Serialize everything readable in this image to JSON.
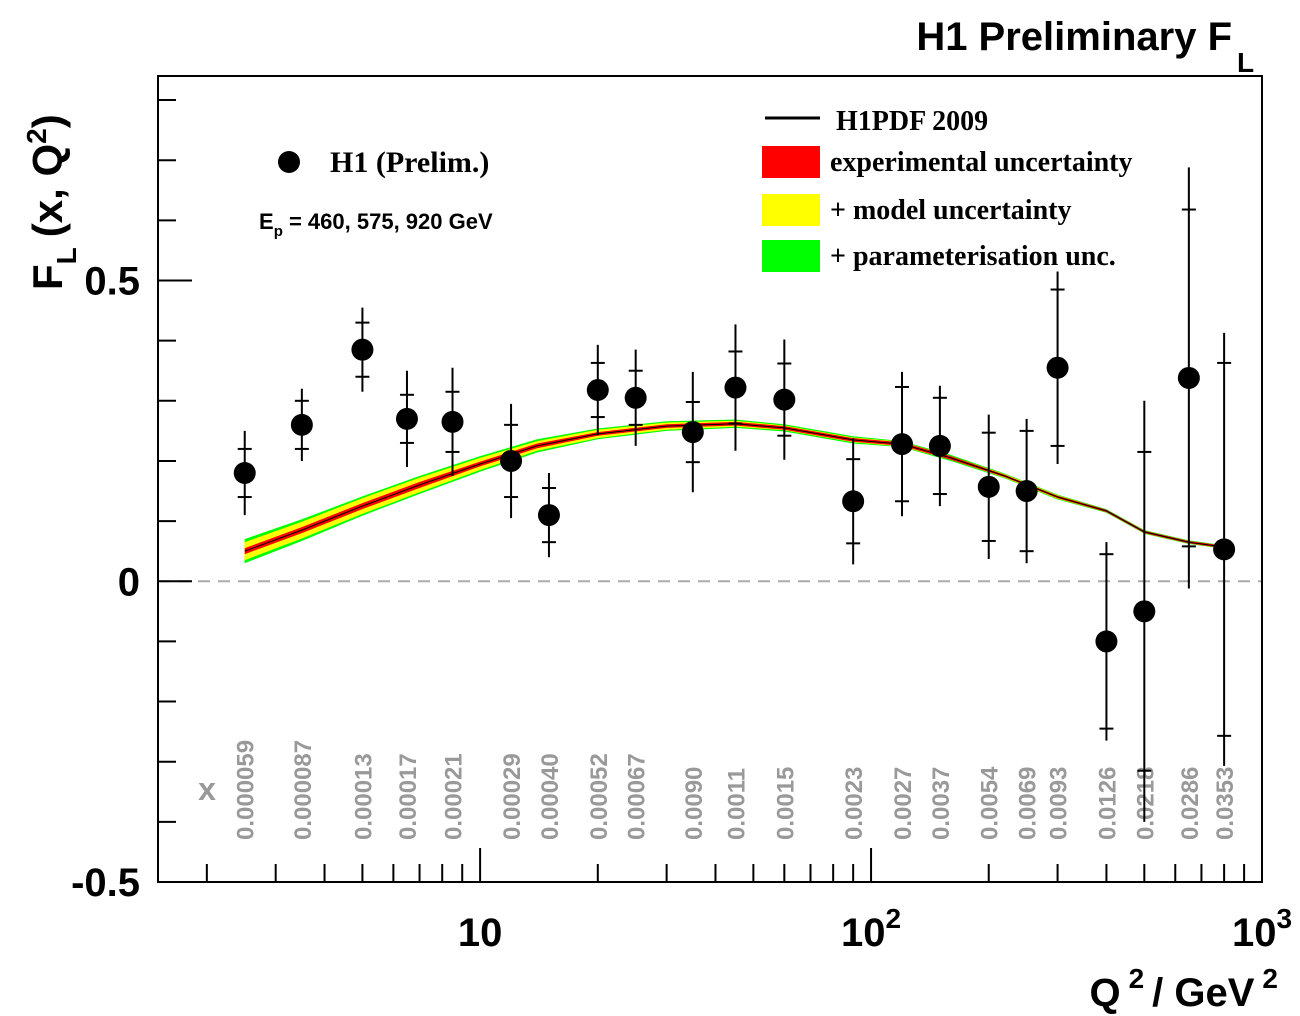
{
  "chart_data": {
    "type": "scatter",
    "title": "H1 Preliminary F",
    "title_sub": "L",
    "ylabel": {
      "main": "F",
      "main_sub": "L",
      "paren": "(x, Q",
      "paren_sup": "2",
      "close": ")"
    },
    "xlabel": {
      "q": "Q",
      "q_sup": "2",
      "unit": "/ GeV",
      "unit_sup": "2"
    },
    "x_scale": "log",
    "xlim": [
      1.5,
      1000
    ],
    "ylim": [
      -0.5,
      0.84
    ],
    "x_ticks": [
      {
        "base": "10",
        "exp": "",
        "value": 10
      },
      {
        "base": "10",
        "exp": "2",
        "value": 100
      },
      {
        "base": "10",
        "exp": "3",
        "value": 1000
      }
    ],
    "y_ticks": [
      {
        "label": "0.5",
        "value": 0.5
      },
      {
        "label": "0",
        "value": 0
      },
      {
        "label": "-0.5",
        "value": -0.5
      }
    ],
    "zero_line": true,
    "legend_left": {
      "marker": "filled-circle",
      "label": "H1 (Prelim.)",
      "energy_prefix": "E",
      "energy_sub": "p",
      "energy_text": " = 460, 575, 920 GeV"
    },
    "legend_right": [
      {
        "kind": "line",
        "label": "H1PDF 2009",
        "color": "#000000"
      },
      {
        "kind": "box",
        "label": "experimental uncertainty",
        "color": "#ff0000"
      },
      {
        "kind": "box",
        "label": "+ model uncertainty",
        "color": "#ffff00"
      },
      {
        "kind": "box",
        "label": "+ parameterisation unc.",
        "color": "#00ff00"
      }
    ],
    "x_bin_title": "x",
    "x_bin_labels": [
      "0.000059",
      "0.000087",
      "0.00013",
      "0.00017",
      "0.00021",
      "0.00029",
      "0.00040",
      "0.00052",
      "0.00067",
      "0.0090",
      "0.0011",
      "0.0015",
      "0.0023",
      "0.0027",
      "0.0037",
      "0.0054",
      "0.0069",
      "0.0093",
      "0.0126",
      "0.0218",
      "0.0286",
      "0.0353"
    ],
    "series": [
      {
        "name": "H1 (Prelim.)",
        "points": [
          {
            "q2": 2.5,
            "fl": 0.18,
            "stat": 0.04,
            "tot": 0.07
          },
          {
            "q2": 3.5,
            "fl": 0.26,
            "stat": 0.04,
            "tot": 0.06
          },
          {
            "q2": 5.0,
            "fl": 0.385,
            "stat": 0.045,
            "tot": 0.07
          },
          {
            "q2": 6.5,
            "fl": 0.27,
            "stat": 0.04,
            "tot": 0.08
          },
          {
            "q2": 8.5,
            "fl": 0.265,
            "stat": 0.05,
            "tot": 0.09
          },
          {
            "q2": 12,
            "fl": 0.2,
            "stat": 0.06,
            "tot": 0.095
          },
          {
            "q2": 15,
            "fl": 0.11,
            "stat": 0.045,
            "tot": 0.07
          },
          {
            "q2": 20,
            "fl": 0.318,
            "stat": 0.045,
            "tot": 0.075
          },
          {
            "q2": 25,
            "fl": 0.305,
            "stat": 0.045,
            "tot": 0.08
          },
          {
            "q2": 35,
            "fl": 0.248,
            "stat": 0.05,
            "tot": 0.1
          },
          {
            "q2": 45,
            "fl": 0.322,
            "stat": 0.06,
            "tot": 0.105
          },
          {
            "q2": 60,
            "fl": 0.302,
            "stat": 0.06,
            "tot": 0.1
          },
          {
            "q2": 90,
            "fl": 0.133,
            "stat": 0.07,
            "tot": 0.105
          },
          {
            "q2": 120,
            "fl": 0.228,
            "stat": 0.095,
            "tot": 0.12
          },
          {
            "q2": 150,
            "fl": 0.225,
            "stat": 0.08,
            "tot": 0.1
          },
          {
            "q2": 200,
            "fl": 0.157,
            "stat": 0.09,
            "tot": 0.12
          },
          {
            "q2": 250,
            "fl": 0.15,
            "stat": 0.1,
            "tot": 0.12
          },
          {
            "q2": 300,
            "fl": 0.355,
            "stat": 0.13,
            "tot": 0.16
          },
          {
            "q2": 400,
            "fl": -0.1,
            "stat": 0.145,
            "tot": 0.165
          },
          {
            "q2": 500,
            "fl": -0.05,
            "stat": 0.265,
            "tot": 0.35
          },
          {
            "q2": 650,
            "fl": 0.338,
            "stat": 0.28,
            "tot": 0.35
          },
          {
            "q2": 800,
            "fl": 0.053,
            "stat": 0.31,
            "tot": 0.36
          }
        ]
      }
    ],
    "band": {
      "name": "H1PDF 2009",
      "points": [
        {
          "q2": 2.5,
          "fl": 0.05,
          "exp": 0.005,
          "model": 0.015,
          "param": 0.02
        },
        {
          "q2": 3.5,
          "fl": 0.085,
          "exp": 0.005,
          "model": 0.014,
          "param": 0.018
        },
        {
          "q2": 5.0,
          "fl": 0.125,
          "exp": 0.005,
          "model": 0.013,
          "param": 0.016
        },
        {
          "q2": 7.0,
          "fl": 0.16,
          "exp": 0.005,
          "model": 0.012,
          "param": 0.015
        },
        {
          "q2": 10,
          "fl": 0.195,
          "exp": 0.004,
          "model": 0.01,
          "param": 0.013
        },
        {
          "q2": 14,
          "fl": 0.225,
          "exp": 0.004,
          "model": 0.008,
          "param": 0.011
        },
        {
          "q2": 20,
          "fl": 0.245,
          "exp": 0.003,
          "model": 0.007,
          "param": 0.009
        },
        {
          "q2": 30,
          "fl": 0.258,
          "exp": 0.003,
          "model": 0.006,
          "param": 0.008
        },
        {
          "q2": 45,
          "fl": 0.262,
          "exp": 0.003,
          "model": 0.005,
          "param": 0.007
        },
        {
          "q2": 60,
          "fl": 0.255,
          "exp": 0.003,
          "model": 0.004,
          "param": 0.006
        },
        {
          "q2": 90,
          "fl": 0.235,
          "exp": 0.003,
          "model": 0.004,
          "param": 0.006
        },
        {
          "q2": 120,
          "fl": 0.228,
          "exp": 0.003,
          "model": 0.004,
          "param": 0.005
        },
        {
          "q2": 160,
          "fl": 0.205,
          "exp": 0.003,
          "model": 0.003,
          "param": 0.005
        },
        {
          "q2": 220,
          "fl": 0.175,
          "exp": 0.002,
          "model": 0.003,
          "param": 0.004
        },
        {
          "q2": 300,
          "fl": 0.14,
          "exp": 0.002,
          "model": 0.003,
          "param": 0.004
        },
        {
          "q2": 400,
          "fl": 0.117,
          "exp": 0.002,
          "model": 0.002,
          "param": 0.003
        },
        {
          "q2": 500,
          "fl": 0.082,
          "exp": 0.002,
          "model": 0.002,
          "param": 0.003
        },
        {
          "q2": 650,
          "fl": 0.065,
          "exp": 0.002,
          "model": 0.002,
          "param": 0.003
        },
        {
          "q2": 800,
          "fl": 0.057,
          "exp": 0.002,
          "model": 0.002,
          "param": 0.003
        }
      ]
    }
  }
}
